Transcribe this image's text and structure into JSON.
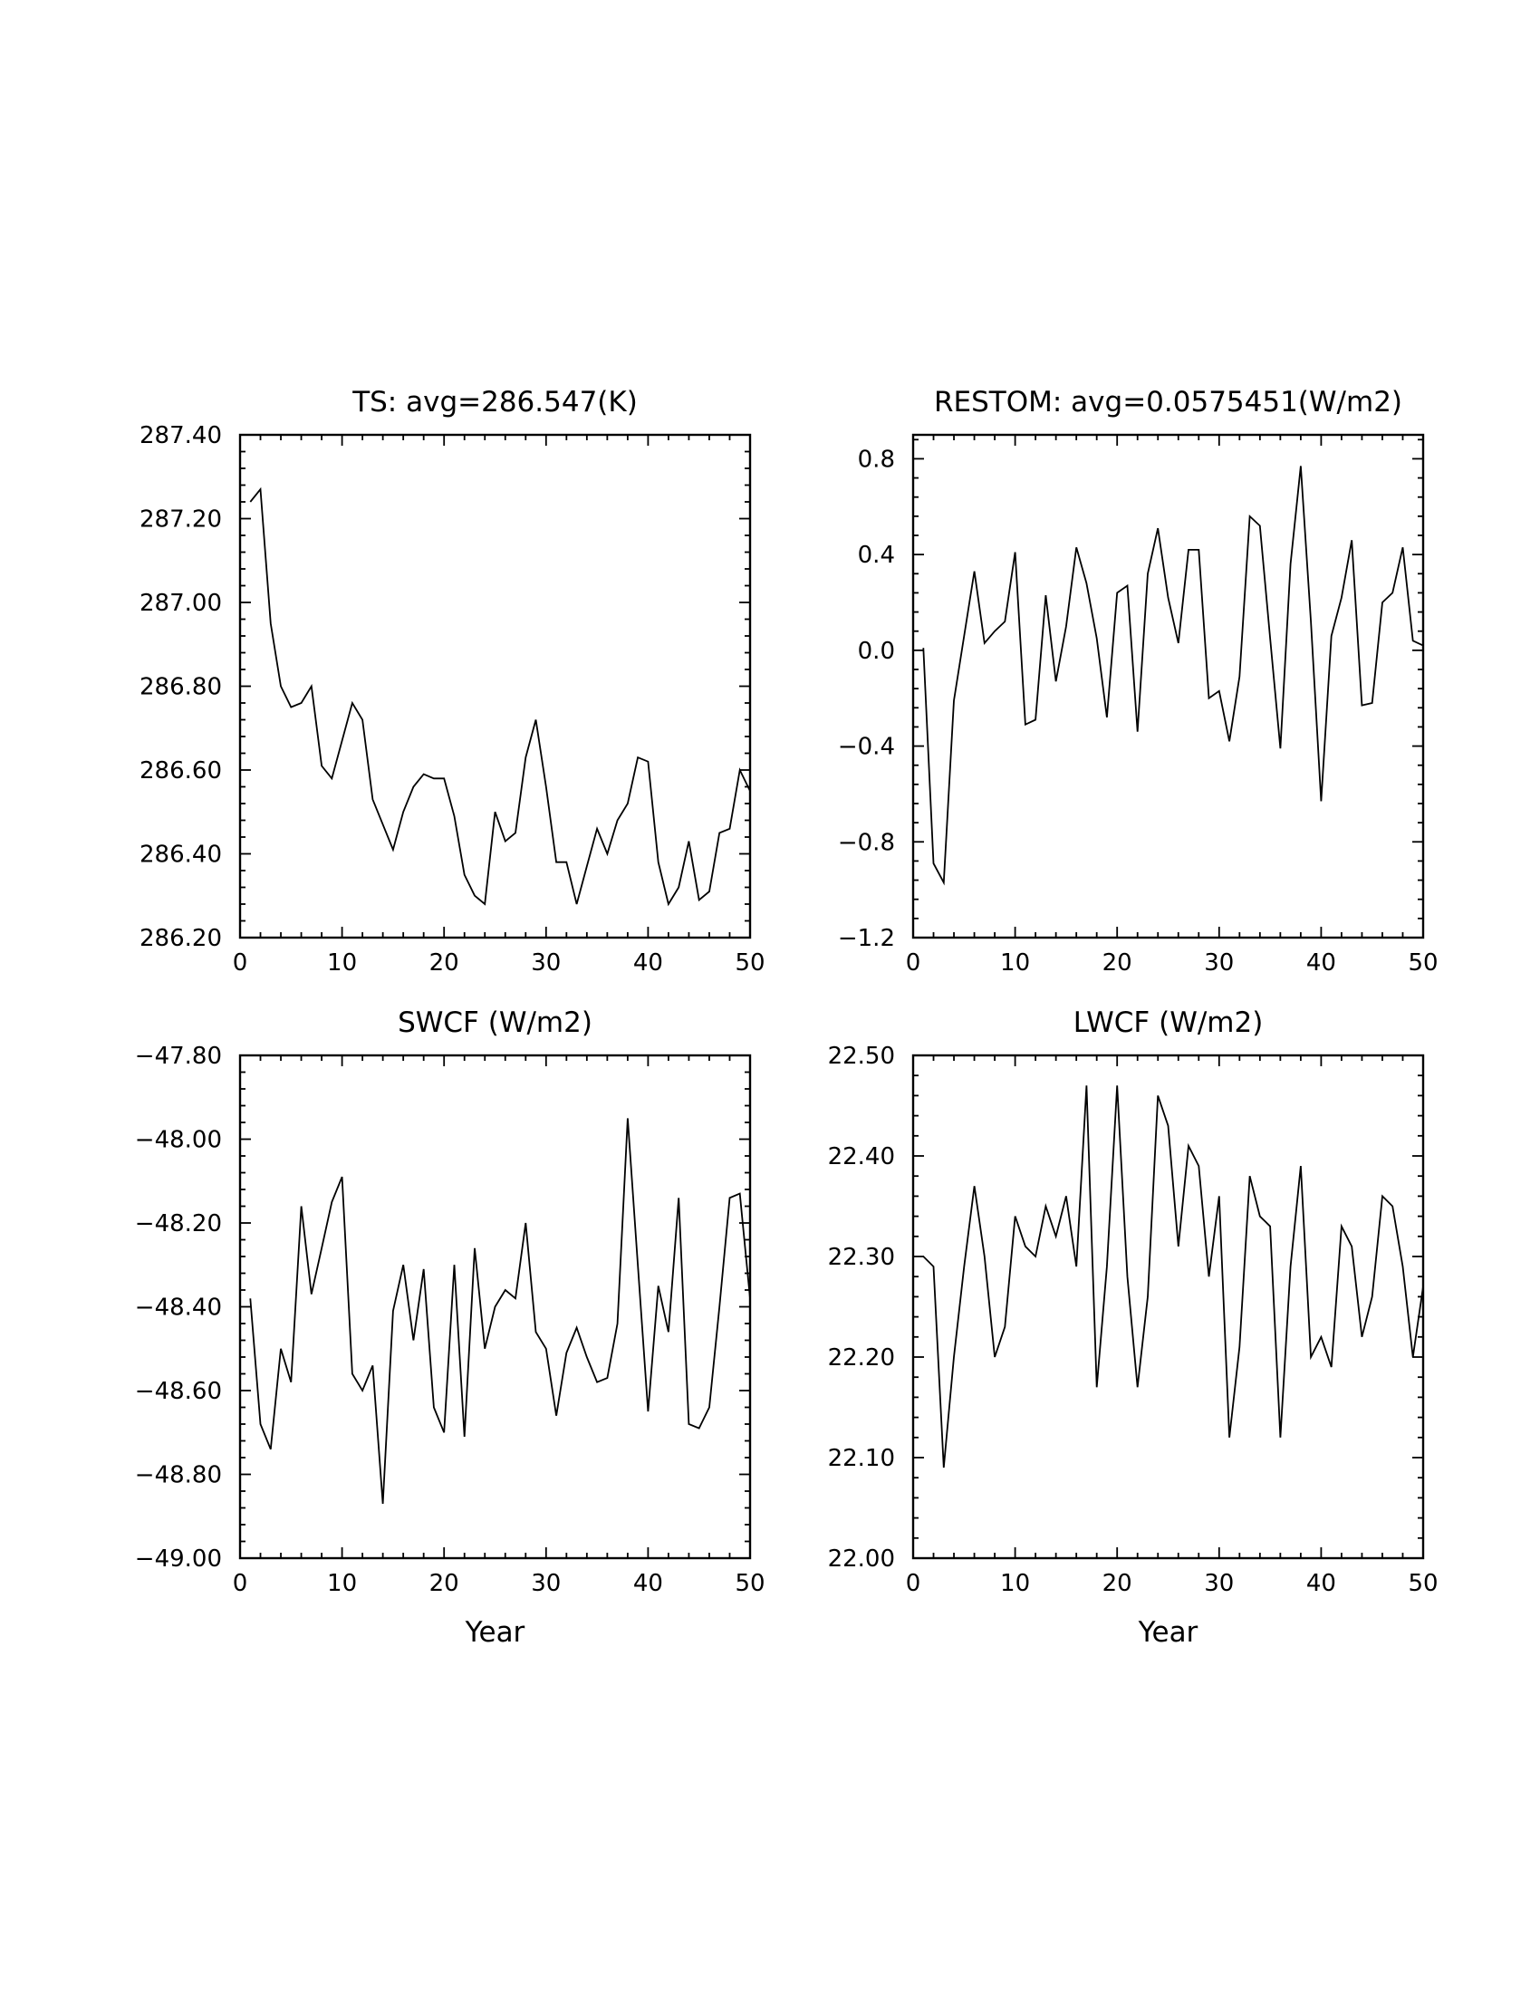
{
  "chart_data": [
    {
      "type": "line",
      "title": "TS: avg=286.547(K)",
      "xlabel": "",
      "ylabel": "",
      "xlim": [
        0,
        50
      ],
      "ylim": [
        286.2,
        287.4
      ],
      "xticks": [
        0,
        10,
        20,
        30,
        40,
        50
      ],
      "xtick_labels": [
        "0",
        "10",
        "20",
        "30",
        "40",
        "50"
      ],
      "yticks": [
        286.2,
        286.4,
        286.6,
        286.8,
        287.0,
        287.2,
        287.4
      ],
      "ytick_labels": [
        "286.20",
        "286.40",
        "286.60",
        "286.80",
        "287.00",
        "287.20",
        "287.40"
      ],
      "x": [
        1,
        2,
        3,
        4,
        5,
        6,
        7,
        8,
        9,
        10,
        11,
        12,
        13,
        14,
        15,
        16,
        17,
        18,
        19,
        20,
        21,
        22,
        23,
        24,
        25,
        26,
        27,
        28,
        29,
        30,
        31,
        32,
        33,
        34,
        35,
        36,
        37,
        38,
        39,
        40,
        41,
        42,
        43,
        44,
        45,
        46,
        47,
        48,
        49,
        50
      ],
      "values": [
        287.24,
        287.27,
        286.95,
        286.8,
        286.75,
        286.76,
        286.8,
        286.61,
        286.58,
        286.67,
        286.76,
        286.72,
        286.53,
        286.47,
        286.41,
        286.5,
        286.56,
        286.59,
        286.58,
        286.58,
        286.49,
        286.35,
        286.3,
        286.28,
        286.5,
        286.43,
        286.45,
        286.63,
        286.72,
        286.56,
        286.38,
        286.38,
        286.28,
        286.37,
        286.46,
        286.4,
        286.48,
        286.52,
        286.63,
        286.62,
        286.38,
        286.28,
        286.32,
        286.43,
        286.29,
        286.31,
        286.45,
        286.46,
        286.6,
        286.55
      ]
    },
    {
      "type": "line",
      "title": "RESTOM: avg=0.0575451(W/m2)",
      "xlabel": "",
      "ylabel": "",
      "xlim": [
        0,
        50
      ],
      "ylim": [
        -1.2,
        0.9
      ],
      "xticks": [
        0,
        10,
        20,
        30,
        40,
        50
      ],
      "xtick_labels": [
        "0",
        "10",
        "20",
        "30",
        "40",
        "50"
      ],
      "yticks": [
        -1.2,
        -0.8,
        -0.4,
        0.0,
        0.4,
        0.8
      ],
      "ytick_labels": [
        "−1.2",
        "−0.8",
        "−0.4",
        "0.0",
        "0.4",
        "0.8"
      ],
      "x": [
        1,
        2,
        3,
        4,
        5,
        6,
        7,
        8,
        9,
        10,
        11,
        12,
        13,
        14,
        15,
        16,
        17,
        18,
        19,
        20,
        21,
        22,
        23,
        24,
        25,
        26,
        27,
        28,
        29,
        30,
        31,
        32,
        33,
        34,
        35,
        36,
        37,
        38,
        39,
        40,
        41,
        42,
        43,
        44,
        45,
        46,
        47,
        48,
        49,
        50
      ],
      "values": [
        0.01,
        -0.89,
        -0.97,
        -0.21,
        0.06,
        0.33,
        0.03,
        0.08,
        0.12,
        0.41,
        -0.31,
        -0.29,
        0.23,
        -0.13,
        0.1,
        0.43,
        0.28,
        0.05,
        -0.28,
        0.24,
        0.27,
        -0.34,
        0.32,
        0.51,
        0.22,
        0.03,
        0.42,
        0.42,
        -0.2,
        -0.17,
        -0.38,
        -0.11,
        0.56,
        0.52,
        0.05,
        -0.41,
        0.36,
        0.77,
        0.12,
        -0.63,
        0.06,
        0.22,
        0.46,
        -0.23,
        -0.22,
        0.2,
        0.24,
        0.43,
        0.04,
        0.02
      ]
    },
    {
      "type": "line",
      "title": "SWCF (W/m2)",
      "xlabel": "Year",
      "ylabel": "",
      "xlim": [
        0,
        50
      ],
      "ylim": [
        -49.0,
        -47.8
      ],
      "xticks": [
        0,
        10,
        20,
        30,
        40,
        50
      ],
      "xtick_labels": [
        "0",
        "10",
        "20",
        "30",
        "40",
        "50"
      ],
      "yticks": [
        -49.0,
        -48.8,
        -48.6,
        -48.4,
        -48.2,
        -48.0,
        -47.8
      ],
      "ytick_labels": [
        "−49.00",
        "−48.80",
        "−48.60",
        "−48.40",
        "−48.20",
        "−48.00",
        "−47.80"
      ],
      "x": [
        1,
        2,
        3,
        4,
        5,
        6,
        7,
        8,
        9,
        10,
        11,
        12,
        13,
        14,
        15,
        16,
        17,
        18,
        19,
        20,
        21,
        22,
        23,
        24,
        25,
        26,
        27,
        28,
        29,
        30,
        31,
        32,
        33,
        34,
        35,
        36,
        37,
        38,
        39,
        40,
        41,
        42,
        43,
        44,
        45,
        46,
        47,
        48,
        49,
        50
      ],
      "values": [
        -48.38,
        -48.68,
        -48.74,
        -48.5,
        -48.58,
        -48.16,
        -48.37,
        -48.26,
        -48.15,
        -48.09,
        -48.56,
        -48.6,
        -48.54,
        -48.87,
        -48.41,
        -48.3,
        -48.48,
        -48.31,
        -48.64,
        -48.7,
        -48.3,
        -48.71,
        -48.26,
        -48.5,
        -48.4,
        -48.36,
        -48.38,
        -48.2,
        -48.46,
        -48.5,
        -48.66,
        -48.51,
        -48.45,
        -48.52,
        -48.58,
        -48.57,
        -48.44,
        -47.95,
        -48.3,
        -48.65,
        -48.35,
        -48.46,
        -48.14,
        -48.68,
        -48.69,
        -48.64,
        -48.4,
        -48.14,
        -48.13,
        -48.38
      ]
    },
    {
      "type": "line",
      "title": "LWCF (W/m2)",
      "xlabel": "Year",
      "ylabel": "",
      "xlim": [
        0,
        50
      ],
      "ylim": [
        22.0,
        22.5
      ],
      "xticks": [
        0,
        10,
        20,
        30,
        40,
        50
      ],
      "xtick_labels": [
        "0",
        "10",
        "20",
        "30",
        "40",
        "50"
      ],
      "yticks": [
        22.0,
        22.1,
        22.2,
        22.3,
        22.4,
        22.5
      ],
      "ytick_labels": [
        "22.00",
        "22.10",
        "22.20",
        "22.30",
        "22.40",
        "22.50"
      ],
      "x": [
        1,
        2,
        3,
        4,
        5,
        6,
        7,
        8,
        9,
        10,
        11,
        12,
        13,
        14,
        15,
        16,
        17,
        18,
        19,
        20,
        21,
        22,
        23,
        24,
        25,
        26,
        27,
        28,
        29,
        30,
        31,
        32,
        33,
        34,
        35,
        36,
        37,
        38,
        39,
        40,
        41,
        42,
        43,
        44,
        45,
        46,
        47,
        48,
        49,
        50
      ],
      "values": [
        22.3,
        22.29,
        22.09,
        22.2,
        22.29,
        22.37,
        22.3,
        22.2,
        22.23,
        22.34,
        22.31,
        22.3,
        22.35,
        22.32,
        22.36,
        22.29,
        22.47,
        22.17,
        22.29,
        22.47,
        22.28,
        22.17,
        22.26,
        22.46,
        22.43,
        22.31,
        22.41,
        22.39,
        22.28,
        22.36,
        22.12,
        22.21,
        22.38,
        22.34,
        22.33,
        22.12,
        22.29,
        22.39,
        22.2,
        22.22,
        22.19,
        22.33,
        22.31,
        22.22,
        22.26,
        22.36,
        22.35,
        22.29,
        22.2,
        22.27
      ]
    }
  ]
}
